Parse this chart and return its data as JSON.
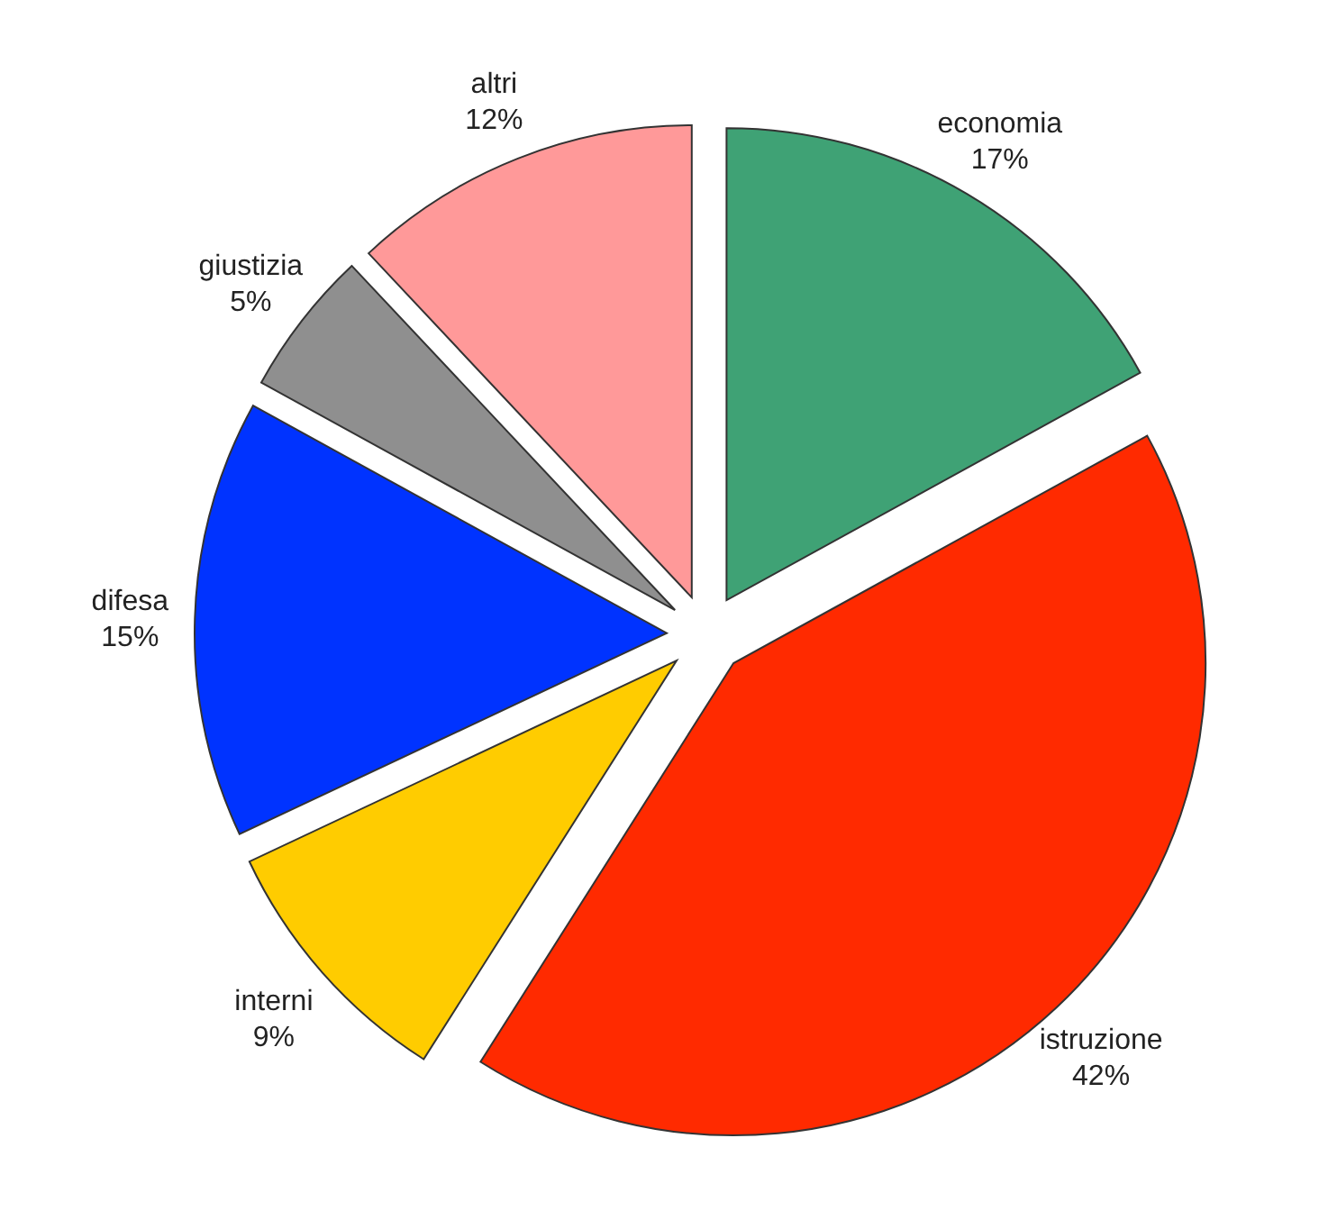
{
  "chart_data": {
    "type": "pie",
    "categories": [
      "economia",
      "istruzione",
      "interni",
      "difesa",
      "giustizia",
      "altri"
    ],
    "values": [
      17,
      42,
      9,
      15,
      5,
      12
    ],
    "value_labels": [
      "17%",
      "42%",
      "9%",
      "15%",
      "5%",
      "12%"
    ],
    "colors": [
      "#3fa275",
      "#ff2a00",
      "#ffcc00",
      "#0033ff",
      "#8f8f8f",
      "#ff9999"
    ]
  }
}
